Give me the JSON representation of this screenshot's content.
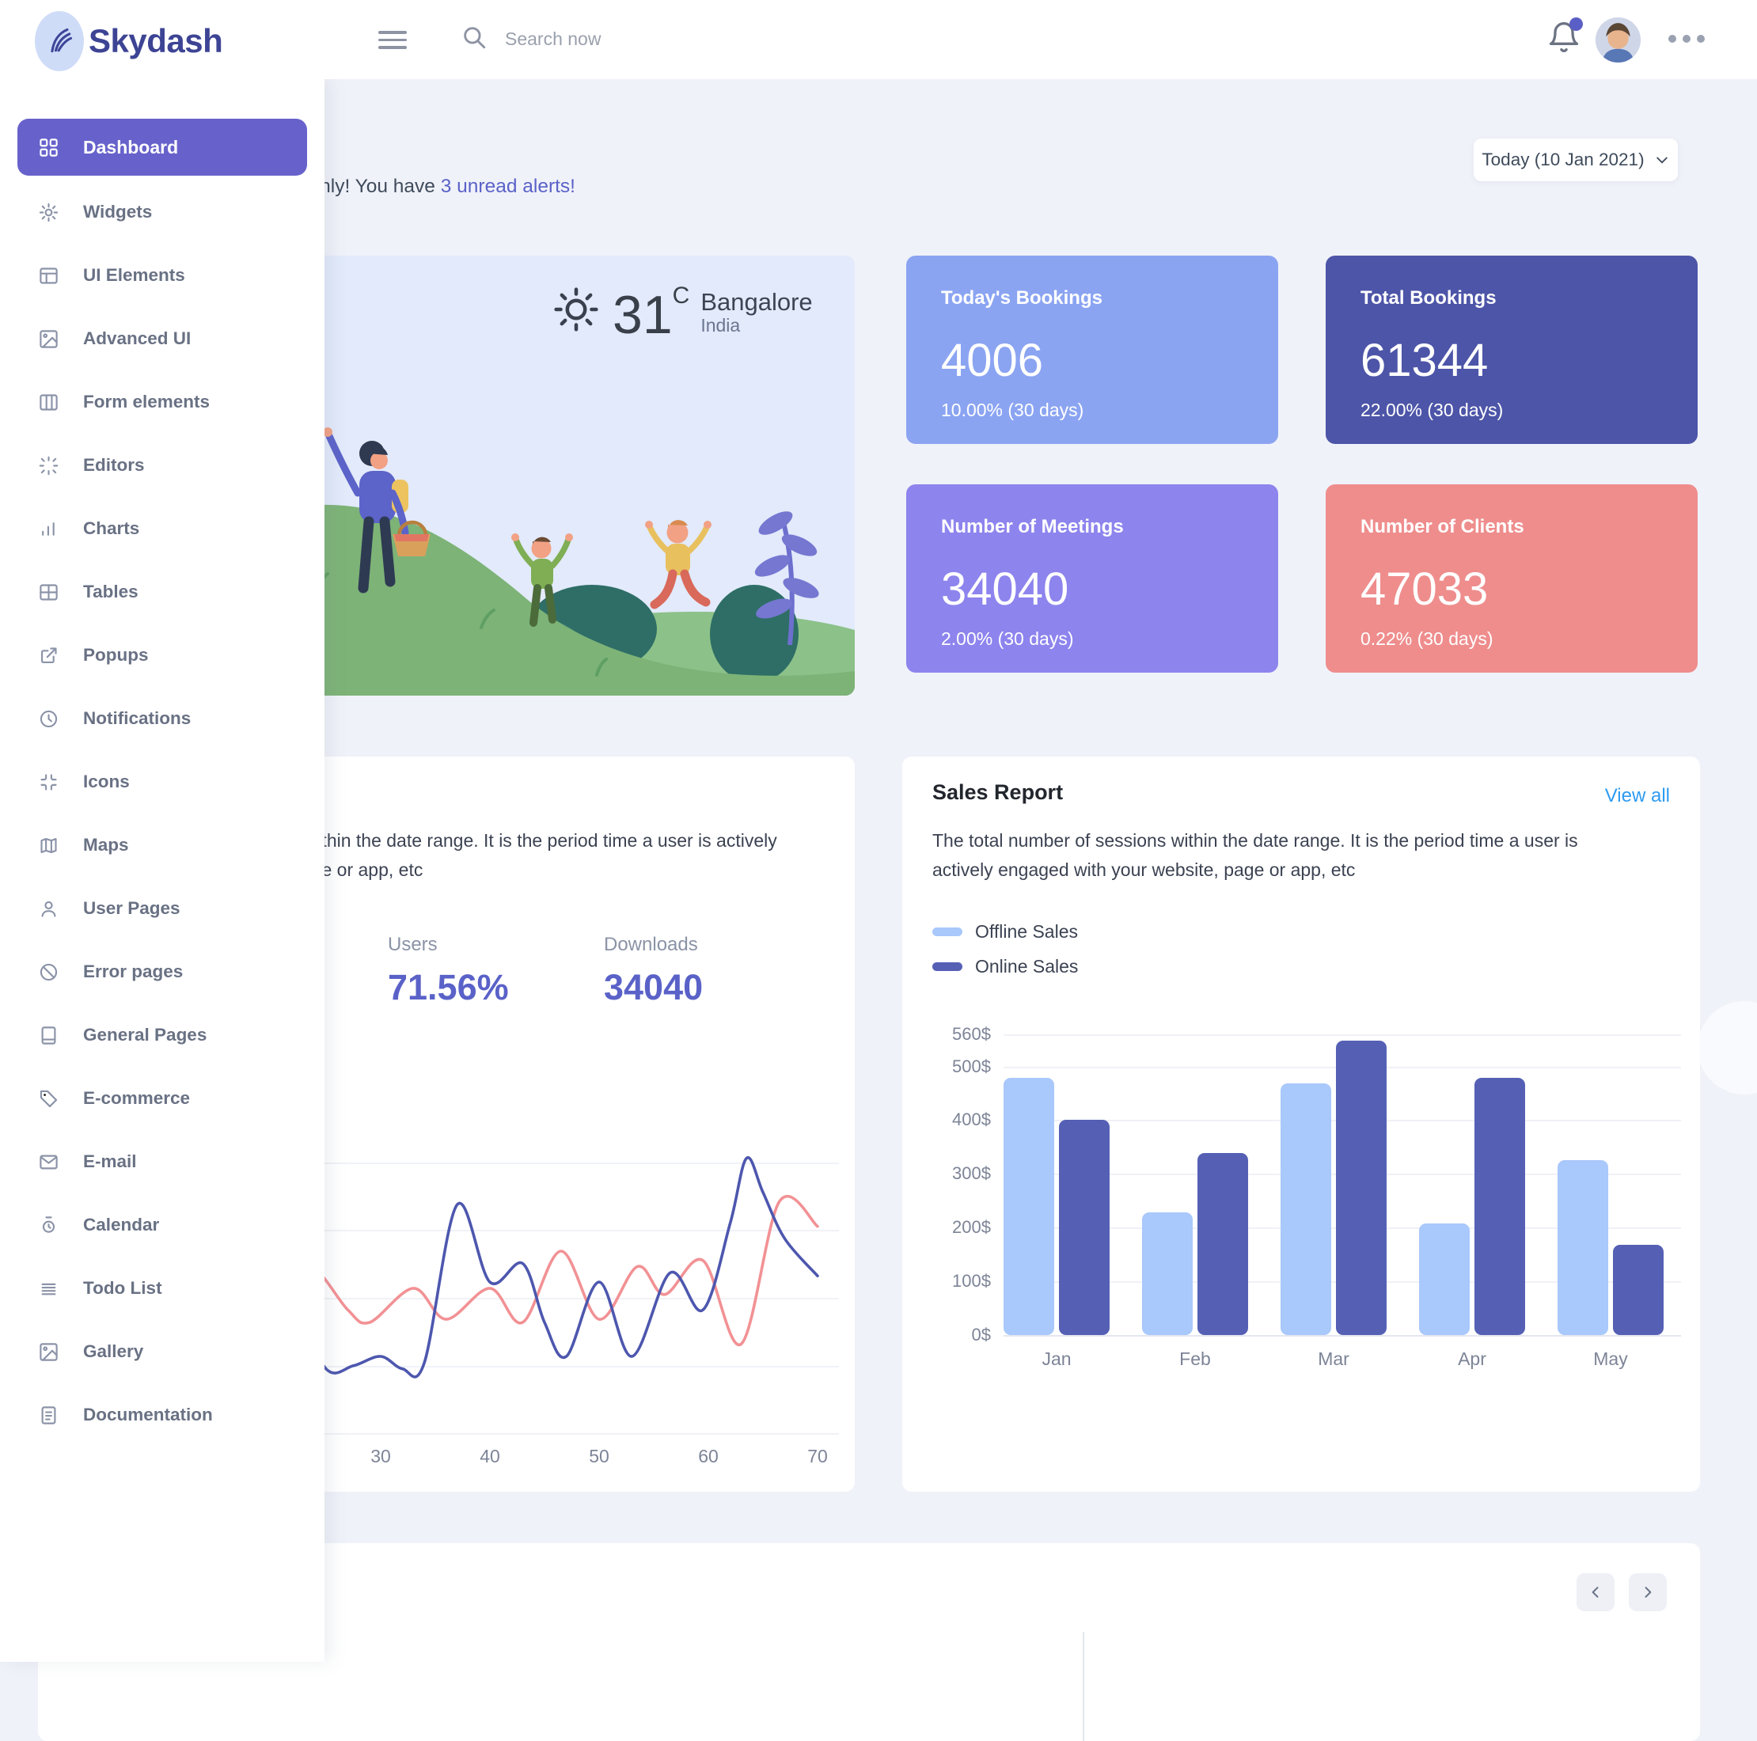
{
  "navbar": {
    "brand": "Skydash",
    "search_placeholder": "Search now"
  },
  "sidebar": {
    "items": [
      {
        "label": "Dashboard",
        "icon": "grid",
        "active": true
      },
      {
        "label": "Widgets",
        "icon": "gear"
      },
      {
        "label": "UI Elements",
        "icon": "layout"
      },
      {
        "label": "Advanced UI",
        "icon": "image"
      },
      {
        "label": "Form elements",
        "icon": "columns"
      },
      {
        "label": "Editors",
        "icon": "loader"
      },
      {
        "label": "Charts",
        "icon": "bar-chart"
      },
      {
        "label": "Tables",
        "icon": "table"
      },
      {
        "label": "Popups",
        "icon": "external-link"
      },
      {
        "label": "Notifications",
        "icon": "history"
      },
      {
        "label": "Icons",
        "icon": "corners"
      },
      {
        "label": "Maps",
        "icon": "map"
      },
      {
        "label": "User Pages",
        "icon": "user"
      },
      {
        "label": "Error pages",
        "icon": "slash"
      },
      {
        "label": "General Pages",
        "icon": "book"
      },
      {
        "label": "E-commerce",
        "icon": "tag"
      },
      {
        "label": "E-mail",
        "icon": "mail"
      },
      {
        "label": "Calendar",
        "icon": "watch"
      },
      {
        "label": "Todo List",
        "icon": "list"
      },
      {
        "label": "Gallery",
        "icon": "image"
      },
      {
        "label": "Documentation",
        "icon": "file-text"
      }
    ]
  },
  "header": {
    "greeting_prefix": "All systems are running smoothly! You have ",
    "greeting_link": "3 unread alerts!",
    "date_button": "Today (10 Jan 2021)"
  },
  "weather": {
    "temperature": "31",
    "unit": "C",
    "city": "Bangalore",
    "country": "India"
  },
  "stats": [
    {
      "title": "Today's Bookings",
      "value": "4006",
      "change": "10.00% (30 days)",
      "color": "#8ba4f2"
    },
    {
      "title": "Total Bookings",
      "value": "61344",
      "change": "22.00% (30 days)",
      "color": "#4d55a8"
    },
    {
      "title": "Number of Meetings",
      "value": "34040",
      "change": "2.00% (30 days)",
      "color": "#8d84ee"
    },
    {
      "title": "Number of Clients",
      "value": "47033",
      "change": "0.22% (30 days)",
      "color": "#ef8d8d"
    }
  ],
  "audience_card": {
    "description": "The total number of sessions within the date range. It is the period time a user is actively engaged with your website, page or app, etc",
    "metrics": [
      {
        "label": "Users",
        "value": "71.56%"
      },
      {
        "label": "Downloads",
        "value": "34040"
      }
    ]
  },
  "sales_card": {
    "title": "Sales Report",
    "view_all": "View all",
    "description": "The total number of sessions within the date range. It is the period time a user is actively engaged with your website, page or app, etc",
    "legend": [
      {
        "label": "Offline Sales",
        "color": "#a9c8fb"
      },
      {
        "label": "Online Sales",
        "color": "#5560b5"
      }
    ]
  },
  "chart_data": [
    {
      "type": "line",
      "title": "",
      "xlabel": "",
      "ylabel": "",
      "xlim": [
        22,
        70
      ],
      "xticks": [
        30,
        40,
        50,
        60,
        70
      ],
      "grid": true,
      "legend_position": "none",
      "series": [
        {
          "name": "pink",
          "color": "#f29194",
          "points": [
            [
              22,
              52
            ],
            [
              24,
              57
            ],
            [
              27,
              44
            ],
            [
              29,
              40
            ],
            [
              33,
              51
            ],
            [
              36,
              41
            ],
            [
              40,
              51
            ],
            [
              43,
              40
            ],
            [
              46.5,
              63
            ],
            [
              50,
              41
            ],
            [
              53.5,
              58
            ],
            [
              56,
              49
            ],
            [
              59.5,
              60
            ],
            [
              63,
              33
            ],
            [
              66.5,
              79
            ],
            [
              70,
              71
            ]
          ]
        },
        {
          "name": "indigo",
          "color": "#4d57ae",
          "points": [
            [
              22,
              46
            ],
            [
              25,
              25
            ],
            [
              27.5,
              26
            ],
            [
              30,
              29
            ],
            [
              32,
              25
            ],
            [
              34,
              27
            ],
            [
              37,
              78
            ],
            [
              40,
              53
            ],
            [
              43,
              59
            ],
            [
              45,
              40
            ],
            [
              47,
              29
            ],
            [
              50,
              53
            ],
            [
              53,
              29
            ],
            [
              56.5,
              56
            ],
            [
              59.5,
              44
            ],
            [
              62,
              72
            ],
            [
              63.5,
              93
            ],
            [
              65,
              82
            ],
            [
              67,
              67
            ],
            [
              70,
              55
            ]
          ]
        }
      ]
    },
    {
      "type": "bar",
      "title": "Sales Report",
      "xlabel": "",
      "ylabel": "",
      "categories": [
        "Jan",
        "Feb",
        "Mar",
        "Apr",
        "May"
      ],
      "series": [
        {
          "name": "Offline Sales",
          "color": "#a9c8fb",
          "values": [
            478,
            228,
            468,
            208,
            326
          ]
        },
        {
          "name": "Online Sales",
          "color": "#5560b5",
          "values": [
            400,
            338,
            548,
            478,
            168
          ]
        }
      ],
      "ylim": [
        0,
        560
      ],
      "ytick_labels": [
        "0$",
        "100$",
        "200$",
        "300$",
        "400$",
        "500$",
        "560$"
      ],
      "ytick_values": [
        0,
        100,
        200,
        300,
        400,
        500,
        560
      ],
      "grid": true,
      "legend_position": "top-left"
    }
  ]
}
